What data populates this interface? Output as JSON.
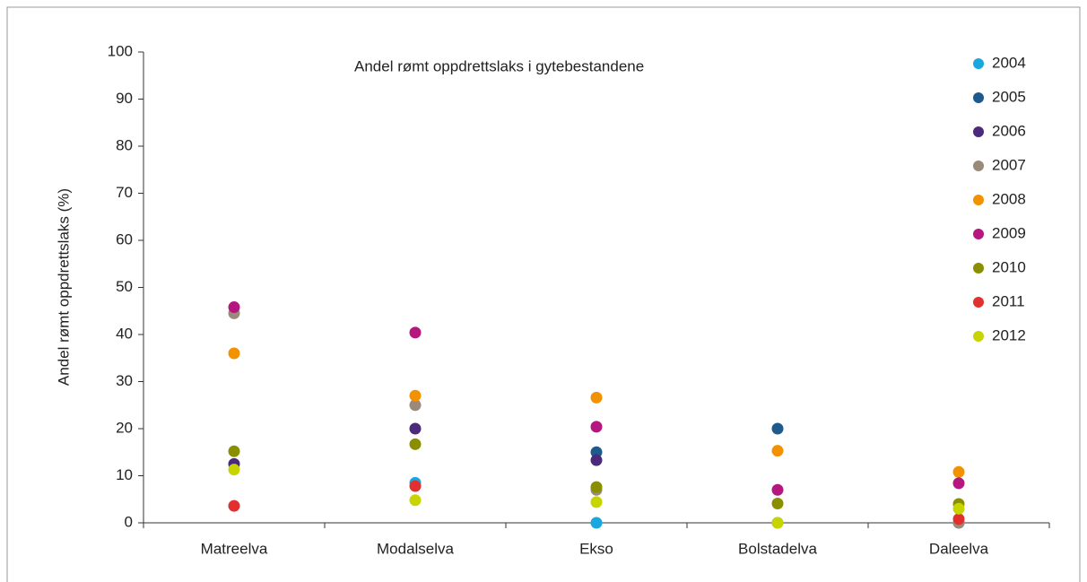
{
  "chart_data": {
    "type": "scatter",
    "title": "Andel rømt oppdrettslaks i gytebestandene",
    "y_label": "Andel rømt oppdrettslaks (%)",
    "categories": [
      "Matreelva",
      "Modalselva",
      "Ekso",
      "Bolstadelva",
      "Daleelva"
    ],
    "ylim": [
      0,
      100
    ],
    "yticks": [
      0,
      10,
      20,
      30,
      40,
      50,
      60,
      70,
      80,
      90,
      100
    ],
    "series": [
      {
        "name": "2004",
        "color": "#1aa7e0",
        "values": [
          null,
          8.5,
          0,
          0,
          0
        ]
      },
      {
        "name": "2005",
        "color": "#1f5a8c",
        "values": [
          null,
          null,
          15,
          20,
          null
        ]
      },
      {
        "name": "2006",
        "color": "#4b2a7d",
        "values": [
          12.5,
          20,
          13.3,
          null,
          null
        ]
      },
      {
        "name": "2007",
        "color": "#9a8a7a",
        "values": [
          44.5,
          25,
          7,
          null,
          0
        ]
      },
      {
        "name": "2008",
        "color": "#f39200",
        "values": [
          36,
          27,
          26.6,
          15.3,
          10.8
        ]
      },
      {
        "name": "2009",
        "color": "#b5177e",
        "values": [
          45.8,
          40.4,
          20.4,
          7,
          8.4
        ]
      },
      {
        "name": "2010",
        "color": "#8a8f00",
        "values": [
          15.2,
          16.7,
          7.6,
          4.1,
          4
        ]
      },
      {
        "name": "2011",
        "color": "#e03030",
        "values": [
          3.6,
          7.8,
          null,
          null,
          0.8
        ]
      },
      {
        "name": "2012",
        "color": "#c8d400",
        "values": [
          11.3,
          4.8,
          4.4,
          0,
          3
        ]
      }
    ]
  }
}
